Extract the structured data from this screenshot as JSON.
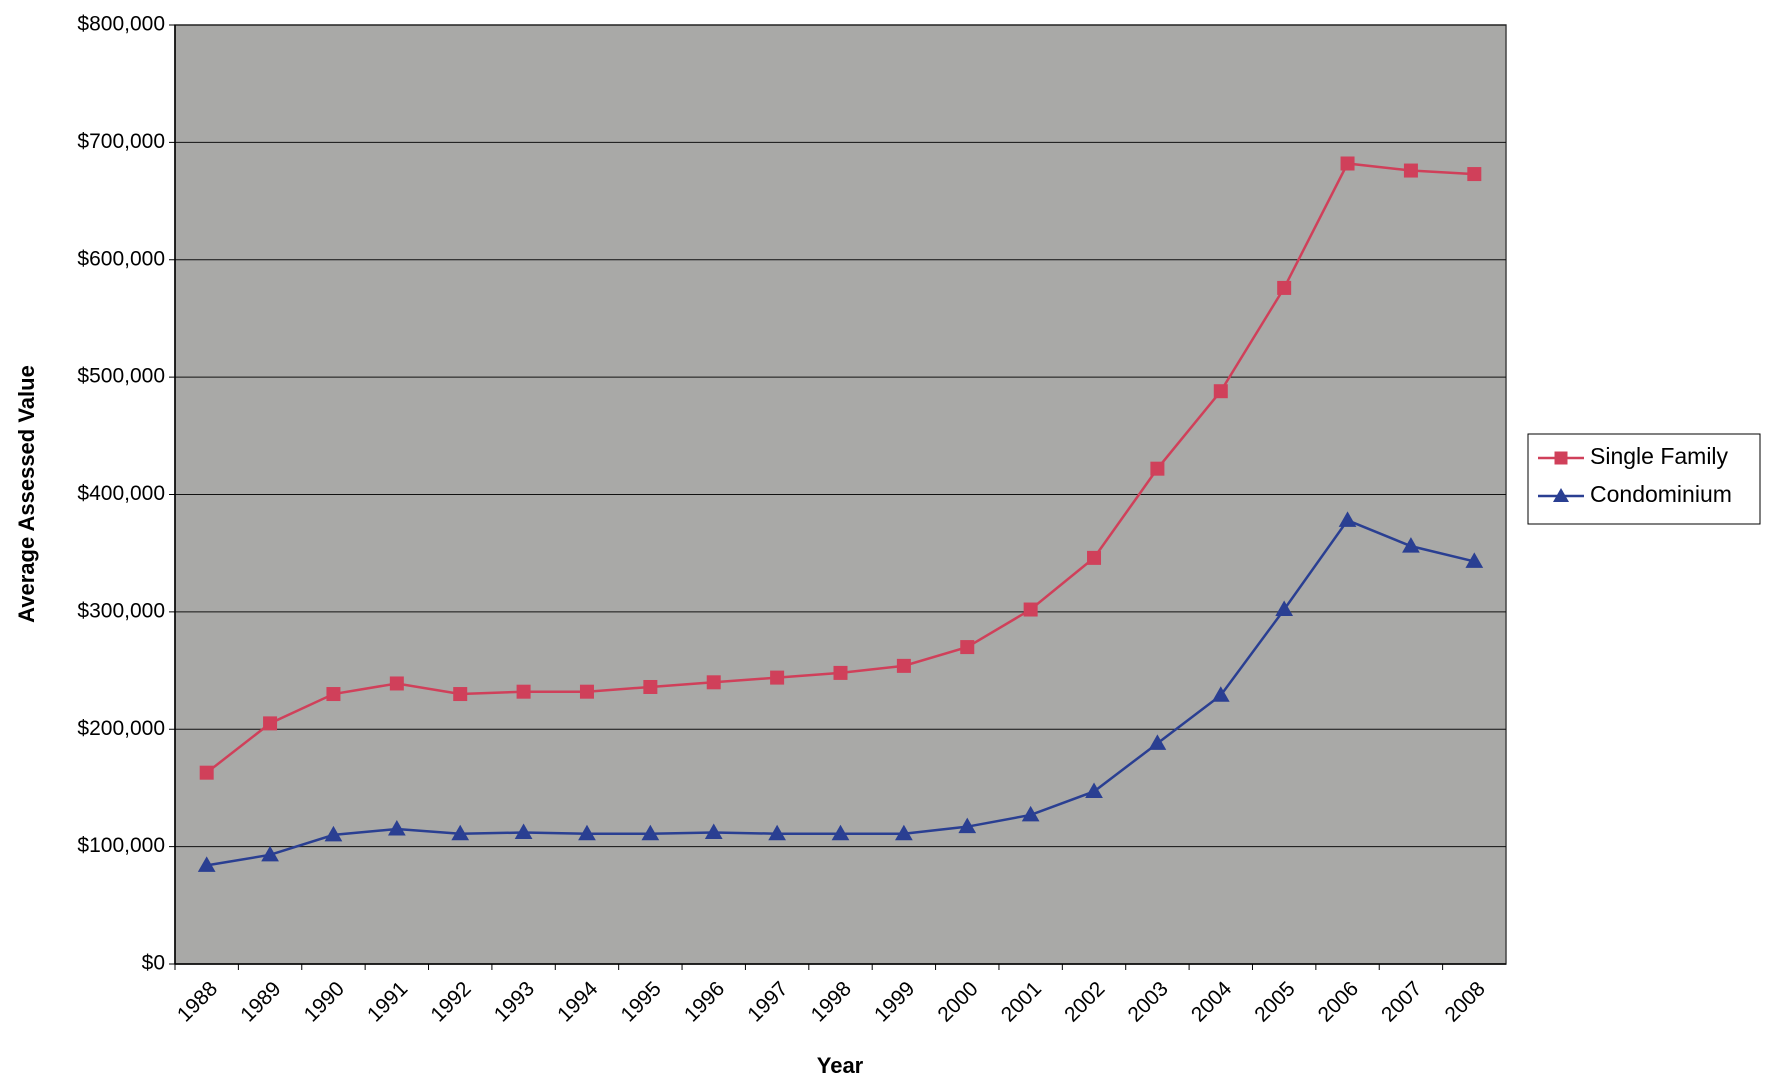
{
  "chart_data": {
    "type": "line",
    "x_label": "Year",
    "y_label": "Average Assessed Value",
    "categories": [
      "1988",
      "1989",
      "1990",
      "1991",
      "1992",
      "1993",
      "1994",
      "1995",
      "1996",
      "1997",
      "1998",
      "1999",
      "2000",
      "2001",
      "2002",
      "2003",
      "2004",
      "2005",
      "2006",
      "2007",
      "2008"
    ],
    "series": [
      {
        "name": "Single Family",
        "color": "#d0405a",
        "marker": "square",
        "values": [
          163000,
          205000,
          230000,
          239000,
          230000,
          232000,
          232000,
          236000,
          240000,
          244000,
          248000,
          254000,
          270000,
          302000,
          346000,
          422000,
          488000,
          576000,
          682000,
          676000,
          673000
        ]
      },
      {
        "name": "Condominium",
        "color": "#2a3f92",
        "marker": "triangle",
        "values": [
          84000,
          93000,
          110000,
          115000,
          111000,
          112000,
          111000,
          111000,
          112000,
          111000,
          111000,
          111000,
          117000,
          127000,
          147000,
          188000,
          229000,
          302000,
          378000,
          356000,
          343000
        ]
      }
    ],
    "ylim": [
      0,
      800000
    ],
    "yticks": [
      {
        "value": 0,
        "label": "$0"
      },
      {
        "value": 100000,
        "label": "$100,000"
      },
      {
        "value": 200000,
        "label": "$200,000"
      },
      {
        "value": 300000,
        "label": "$300,000"
      },
      {
        "value": 400000,
        "label": "$400,000"
      },
      {
        "value": 500000,
        "label": "$500,000"
      },
      {
        "value": 600000,
        "label": "$600,000"
      },
      {
        "value": 700000,
        "label": "$700,000"
      },
      {
        "value": 800000,
        "label": "$800,000"
      }
    ],
    "grid": true,
    "legend": "right"
  }
}
